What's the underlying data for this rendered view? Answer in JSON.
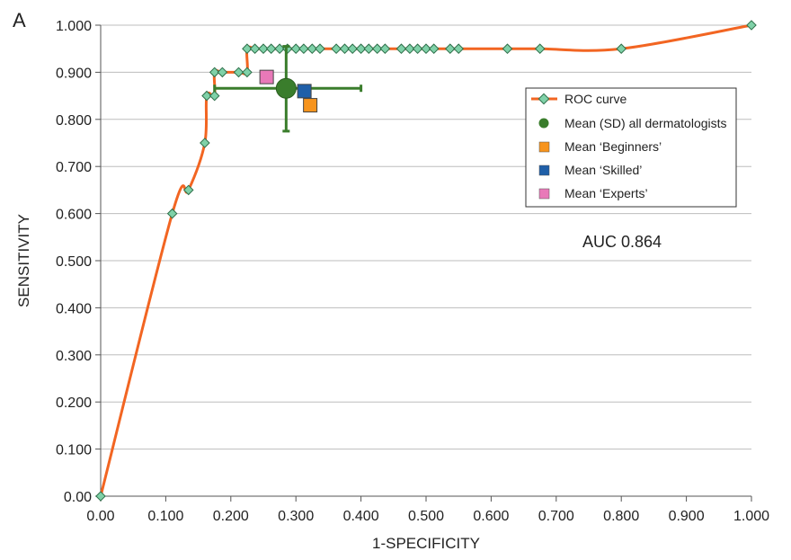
{
  "chart_data": {
    "type": "line",
    "panel_label": "A",
    "xlabel": "1-SPECIFICITY",
    "ylabel": "SENSITIVITY",
    "xlim": [
      0,
      1
    ],
    "ylim": [
      0,
      1
    ],
    "x_ticks": [
      "0.00",
      "0.100",
      "0.200",
      "0.300",
      "0.400",
      "0.500",
      "0.600",
      "0.700",
      "0.800",
      "0.900",
      "1.000"
    ],
    "y_ticks": [
      "0.00",
      "0.100",
      "0.200",
      "0.300",
      "0.400",
      "0.500",
      "0.600",
      "0.700",
      "0.800",
      "0.900",
      "1.000"
    ],
    "grid": "horizontal",
    "legend_position": "right",
    "annotation": "AUC 0.864",
    "colors": {
      "roc_line": "#f26522",
      "roc_marker": "#7fd1a8",
      "all": "#3a7d2c",
      "beginners": "#f7941d",
      "skilled": "#1f5fa8",
      "experts": "#e879b8"
    },
    "roc_curve": {
      "name": "ROC curve",
      "points": [
        [
          0.0,
          0.0
        ],
        [
          0.11,
          0.6
        ],
        [
          0.135,
          0.65
        ],
        [
          0.16,
          0.75
        ],
        [
          0.163,
          0.85
        ],
        [
          0.175,
          0.85
        ],
        [
          0.175,
          0.9
        ],
        [
          0.187,
          0.9
        ],
        [
          0.212,
          0.9
        ],
        [
          0.225,
          0.9
        ],
        [
          0.225,
          0.95
        ],
        [
          0.237,
          0.95
        ],
        [
          0.25,
          0.95
        ],
        [
          0.262,
          0.95
        ],
        [
          0.275,
          0.95
        ],
        [
          0.287,
          0.95
        ],
        [
          0.3,
          0.95
        ],
        [
          0.312,
          0.95
        ],
        [
          0.325,
          0.95
        ],
        [
          0.337,
          0.95
        ],
        [
          0.362,
          0.95
        ],
        [
          0.375,
          0.95
        ],
        [
          0.387,
          0.95
        ],
        [
          0.4,
          0.95
        ],
        [
          0.412,
          0.95
        ],
        [
          0.425,
          0.95
        ],
        [
          0.437,
          0.95
        ],
        [
          0.462,
          0.95
        ],
        [
          0.475,
          0.95
        ],
        [
          0.487,
          0.95
        ],
        [
          0.5,
          0.95
        ],
        [
          0.512,
          0.95
        ],
        [
          0.537,
          0.95
        ],
        [
          0.55,
          0.95
        ],
        [
          0.625,
          0.95
        ],
        [
          0.675,
          0.95
        ],
        [
          0.8,
          0.95
        ],
        [
          1.0,
          1.0
        ]
      ]
    },
    "mean_all": {
      "name": "Mean (SD) all dermatologists",
      "x": 0.285,
      "y": 0.866,
      "x_sd_range": [
        0.175,
        0.4
      ],
      "y_sd_range": [
        0.775,
        0.955
      ]
    },
    "mean_groups": [
      {
        "name": "Mean ‘Beginners’",
        "x": 0.322,
        "y": 0.83,
        "color_key": "beginners"
      },
      {
        "name": "Mean ‘Skilled’",
        "x": 0.313,
        "y": 0.86,
        "color_key": "skilled"
      },
      {
        "name": "Mean ‘Experts’",
        "x": 0.255,
        "y": 0.89,
        "color_key": "experts"
      }
    ]
  }
}
